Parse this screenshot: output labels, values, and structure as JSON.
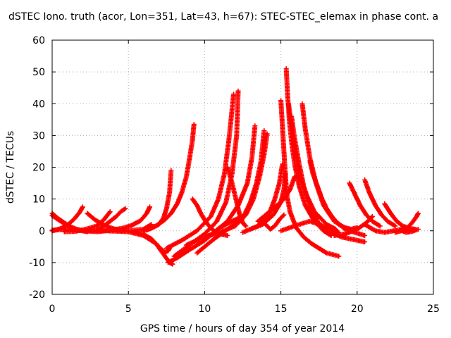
{
  "chart_data": {
    "type": "scatter",
    "title": "dSTEC Iono. truth (acor, Lon=351, Lat=43, h=67): STEC-STEC_elemax in phase cont. a",
    "xlabel": "GPS time / hours of day 354 of year 2014",
    "ylabel": "dSTEC  / TECUs",
    "xlim": [
      0,
      25
    ],
    "ylim": [
      -20,
      60
    ],
    "xticks": [
      0,
      5,
      10,
      15,
      20,
      25
    ],
    "yticks": [
      -20,
      -10,
      0,
      10,
      20,
      30,
      40,
      50,
      60
    ],
    "grid": true,
    "marker": "+",
    "color": "#ff0000",
    "series": [
      {
        "x": [
          0.0,
          0.3,
          0.6,
          0.9,
          1.2,
          1.5,
          1.8,
          2.0
        ],
        "y": [
          0.0,
          0.3,
          0.8,
          1.5,
          2.6,
          4.0,
          5.8,
          7.5
        ]
      },
      {
        "x": [
          0.0,
          0.3,
          0.6,
          0.9,
          1.2,
          1.6
        ],
        "y": [
          5.5,
          4.2,
          3.2,
          2.2,
          1.2,
          0.3
        ]
      },
      {
        "x": [
          0.0,
          0.4,
          0.8,
          1.2,
          1.6,
          2.0,
          2.3
        ],
        "y": [
          4.8,
          3.5,
          2.3,
          1.3,
          0.5,
          0.0,
          -0.3
        ]
      },
      {
        "x": [
          0.8,
          1.5,
          2.2,
          2.9,
          3.4,
          3.8
        ],
        "y": [
          -0.3,
          -0.2,
          0.5,
          1.5,
          3.5,
          6.0
        ]
      },
      {
        "x": [
          2.3,
          2.8,
          3.3,
          3.8,
          4.2,
          4.6
        ],
        "y": [
          5.5,
          3.5,
          2.0,
          1.0,
          0.4,
          0.0
        ]
      },
      {
        "x": [
          3.0,
          3.4,
          3.8,
          4.2,
          4.5,
          4.8
        ],
        "y": [
          0.5,
          1.5,
          3.0,
          4.5,
          6.0,
          7.0
        ]
      },
      {
        "x": [
          4.0,
          4.6,
          5.2,
          5.8,
          6.2,
          6.4
        ],
        "y": [
          0.3,
          0.8,
          1.7,
          3.2,
          5.5,
          7.5
        ]
      },
      {
        "x": [
          0.0,
          1.0,
          2.0,
          3.0,
          4.0,
          5.0,
          6.0,
          6.5
        ],
        "y": [
          0.2,
          0.5,
          0.0,
          -0.3,
          0.3,
          0.0,
          0.5,
          2.0
        ]
      },
      {
        "x": [
          2.0,
          3.5,
          5.0,
          6.0,
          6.8,
          7.4,
          7.7,
          7.9
        ],
        "y": [
          0.0,
          0.0,
          -0.3,
          -1.5,
          -4.0,
          -8.0,
          -10.0,
          -10.5
        ]
      },
      {
        "x": [
          5.5,
          6.0,
          6.5,
          6.9,
          7.2,
          7.4,
          7.6,
          7.7
        ],
        "y": [
          -0.5,
          -1.2,
          -2.5,
          -4.5,
          -6.0,
          -6.7,
          -6.3,
          -5.5
        ]
      },
      {
        "x": [
          6.2,
          6.8,
          7.4,
          7.8,
          8.2,
          8.5,
          8.8,
          9.0,
          9.2,
          9.3
        ],
        "y": [
          0.2,
          1.5,
          3.5,
          5.5,
          8.5,
          12.0,
          17.0,
          22.5,
          28.5,
          33.5
        ]
      },
      {
        "x": [
          6.0,
          6.5,
          7.0,
          7.3,
          7.5,
          7.7,
          7.8
        ],
        "y": [
          0.0,
          0.8,
          2.0,
          4.0,
          7.0,
          12.0,
          19.0
        ]
      },
      {
        "x": [
          7.6,
          8.2,
          9.0,
          10.0,
          11.0,
          12.0,
          12.5
        ],
        "y": [
          -10.0,
          -8.5,
          -6.0,
          -3.0,
          1.0,
          3.5,
          4.5
        ]
      },
      {
        "x": [
          8.0,
          9.0,
          10.0,
          10.8,
          11.4,
          11.8,
          12.1,
          12.2
        ],
        "y": [
          -8.0,
          -4.5,
          -1.0,
          3.0,
          9.0,
          18.0,
          30.0,
          44.0
        ]
      },
      {
        "x": [
          7.5,
          8.5,
          9.5,
          10.4,
          10.9,
          11.3,
          11.6,
          11.9
        ],
        "y": [
          -5.5,
          -3.0,
          0.0,
          4.5,
          10.0,
          18.0,
          29.0,
          43.0
        ]
      },
      {
        "x": [
          9.2,
          9.5,
          9.8,
          10.2,
          10.6,
          11.0,
          11.5
        ],
        "y": [
          10.0,
          8.0,
          5.0,
          2.0,
          0.0,
          -1.0,
          -1.5
        ]
      },
      {
        "x": [
          9.5,
          10.5,
          11.5,
          12.5,
          13.0,
          13.4,
          13.7,
          13.9
        ],
        "y": [
          -7.0,
          -3.0,
          0.5,
          4.0,
          9.0,
          15.0,
          22.0,
          31.5
        ]
      },
      {
        "x": [
          10.0,
          11.0,
          12.0,
          12.7,
          13.2,
          13.6,
          13.9,
          14.1
        ],
        "y": [
          -2.0,
          -0.5,
          1.5,
          5.0,
          10.0,
          17.0,
          24.0,
          30.5
        ]
      },
      {
        "x": [
          8.8,
          9.5,
          10.5,
          11.5,
          12.2,
          12.8,
          13.1,
          13.3
        ],
        "y": [
          -4.5,
          -3.0,
          -1.0,
          3.0,
          8.0,
          15.0,
          23.0,
          33.0
        ]
      },
      {
        "x": [
          11.5,
          11.8,
          12.1,
          12.3,
          12.5,
          12.7
        ],
        "y": [
          20.0,
          15.0,
          9.0,
          5.0,
          2.5,
          1.5
        ]
      },
      {
        "x": [
          12.5,
          13.5,
          14.2,
          14.6,
          14.9,
          15.1
        ],
        "y": [
          -0.5,
          1.5,
          5.0,
          10.0,
          15.0,
          21.0
        ]
      },
      {
        "x": [
          13.0,
          13.8,
          14.5,
          15.0,
          15.2,
          15.3
        ],
        "y": [
          0.5,
          2.0,
          5.0,
          9.0,
          13.0,
          18.0
        ]
      },
      {
        "x": [
          13.5,
          14.5,
          15.2,
          15.6,
          15.9
        ],
        "y": [
          3.0,
          7.0,
          10.0,
          13.0,
          17.0
        ]
      },
      {
        "x": [
          15.0,
          15.1,
          15.2,
          15.3,
          15.4,
          15.6,
          16.0,
          16.5,
          17.0,
          17.5,
          18.0,
          18.8
        ],
        "y": [
          41.0,
          33.0,
          25.0,
          17.0,
          11.0,
          6.0,
          1.0,
          -2.0,
          -4.0,
          -5.5,
          -7.0,
          -8.0
        ]
      },
      {
        "x": [
          15.35,
          15.45,
          15.55,
          15.7,
          15.9,
          16.2,
          16.6,
          17.2,
          17.8,
          18.3
        ],
        "y": [
          51.0,
          42.0,
          35.0,
          28.0,
          21.0,
          14.0,
          8.0,
          3.0,
          0.0,
          -1.5
        ]
      },
      {
        "x": [
          15.5,
          15.7,
          15.9,
          16.2,
          16.6,
          17.2,
          18.0,
          18.6
        ],
        "y": [
          40.0,
          33.0,
          26.0,
          18.0,
          12.0,
          6.0,
          2.0,
          0.5
        ]
      },
      {
        "x": [
          15.7,
          15.9,
          16.2,
          16.5,
          16.9,
          17.4,
          18.0,
          19.0,
          20.0,
          20.5
        ],
        "y": [
          36.0,
          29.0,
          21.0,
          14.0,
          8.0,
          3.0,
          0.0,
          -2.0,
          -3.0,
          -3.5
        ]
      },
      {
        "x": [
          16.4,
          16.6,
          16.9,
          17.3,
          17.8,
          18.5,
          19.5,
          20.5
        ],
        "y": [
          40.0,
          32.0,
          23.0,
          15.0,
          8.0,
          3.0,
          0.0,
          -1.5
        ]
      },
      {
        "x": [
          16.9,
          17.1,
          17.4,
          17.7,
          18.1,
          18.6,
          19.2
        ],
        "y": [
          22.0,
          18.0,
          14.0,
          10.0,
          6.0,
          3.0,
          0.5
        ]
      },
      {
        "x": [
          15.0,
          15.6,
          16.2,
          16.9,
          17.5,
          18.0,
          18.5,
          18.8
        ],
        "y": [
          0.0,
          1.0,
          2.0,
          3.0,
          2.0,
          1.0,
          0.0,
          -0.5
        ]
      },
      {
        "x": [
          14.0,
          14.3,
          14.6,
          14.9,
          15.2
        ],
        "y": [
          2.0,
          0.5,
          1.5,
          3.5,
          5.0
        ]
      },
      {
        "x": [
          18.0,
          18.4,
          18.8,
          19.2,
          19.6,
          20.0
        ],
        "y": [
          7.0,
          4.0,
          2.0,
          1.0,
          0.5,
          1.0
        ]
      },
      {
        "x": [
          19.5,
          19.8,
          20.2,
          20.6,
          21.0,
          21.5
        ],
        "y": [
          15.0,
          12.0,
          8.0,
          5.0,
          3.0,
          1.5
        ]
      },
      {
        "x": [
          20.5,
          20.8,
          21.2,
          21.6,
          22.0,
          22.5
        ],
        "y": [
          16.0,
          12.0,
          8.0,
          5.0,
          3.0,
          1.5
        ]
      },
      {
        "x": [
          18.5,
          19.2,
          20.0,
          20.6,
          21.0
        ],
        "y": [
          -1.5,
          -1.0,
          0.5,
          2.5,
          4.5
        ]
      },
      {
        "x": [
          20.5,
          21.2,
          21.8,
          22.4,
          23.0,
          23.5
        ],
        "y": [
          2.0,
          0.0,
          -0.5,
          0.0,
          0.5,
          0.3
        ]
      },
      {
        "x": [
          21.8,
          22.2,
          22.6,
          23.0,
          23.4,
          23.8
        ],
        "y": [
          8.5,
          5.5,
          3.0,
          1.5,
          0.8,
          0.5
        ]
      },
      {
        "x": [
          22.5,
          22.9,
          23.3,
          23.6,
          23.9,
          24.0
        ],
        "y": [
          -0.5,
          0.0,
          1.0,
          2.5,
          4.5,
          5.5
        ]
      },
      {
        "x": [
          22.8,
          23.2,
          23.6,
          24.0
        ],
        "y": [
          0.3,
          -0.5,
          -0.2,
          0.5
        ]
      }
    ]
  }
}
